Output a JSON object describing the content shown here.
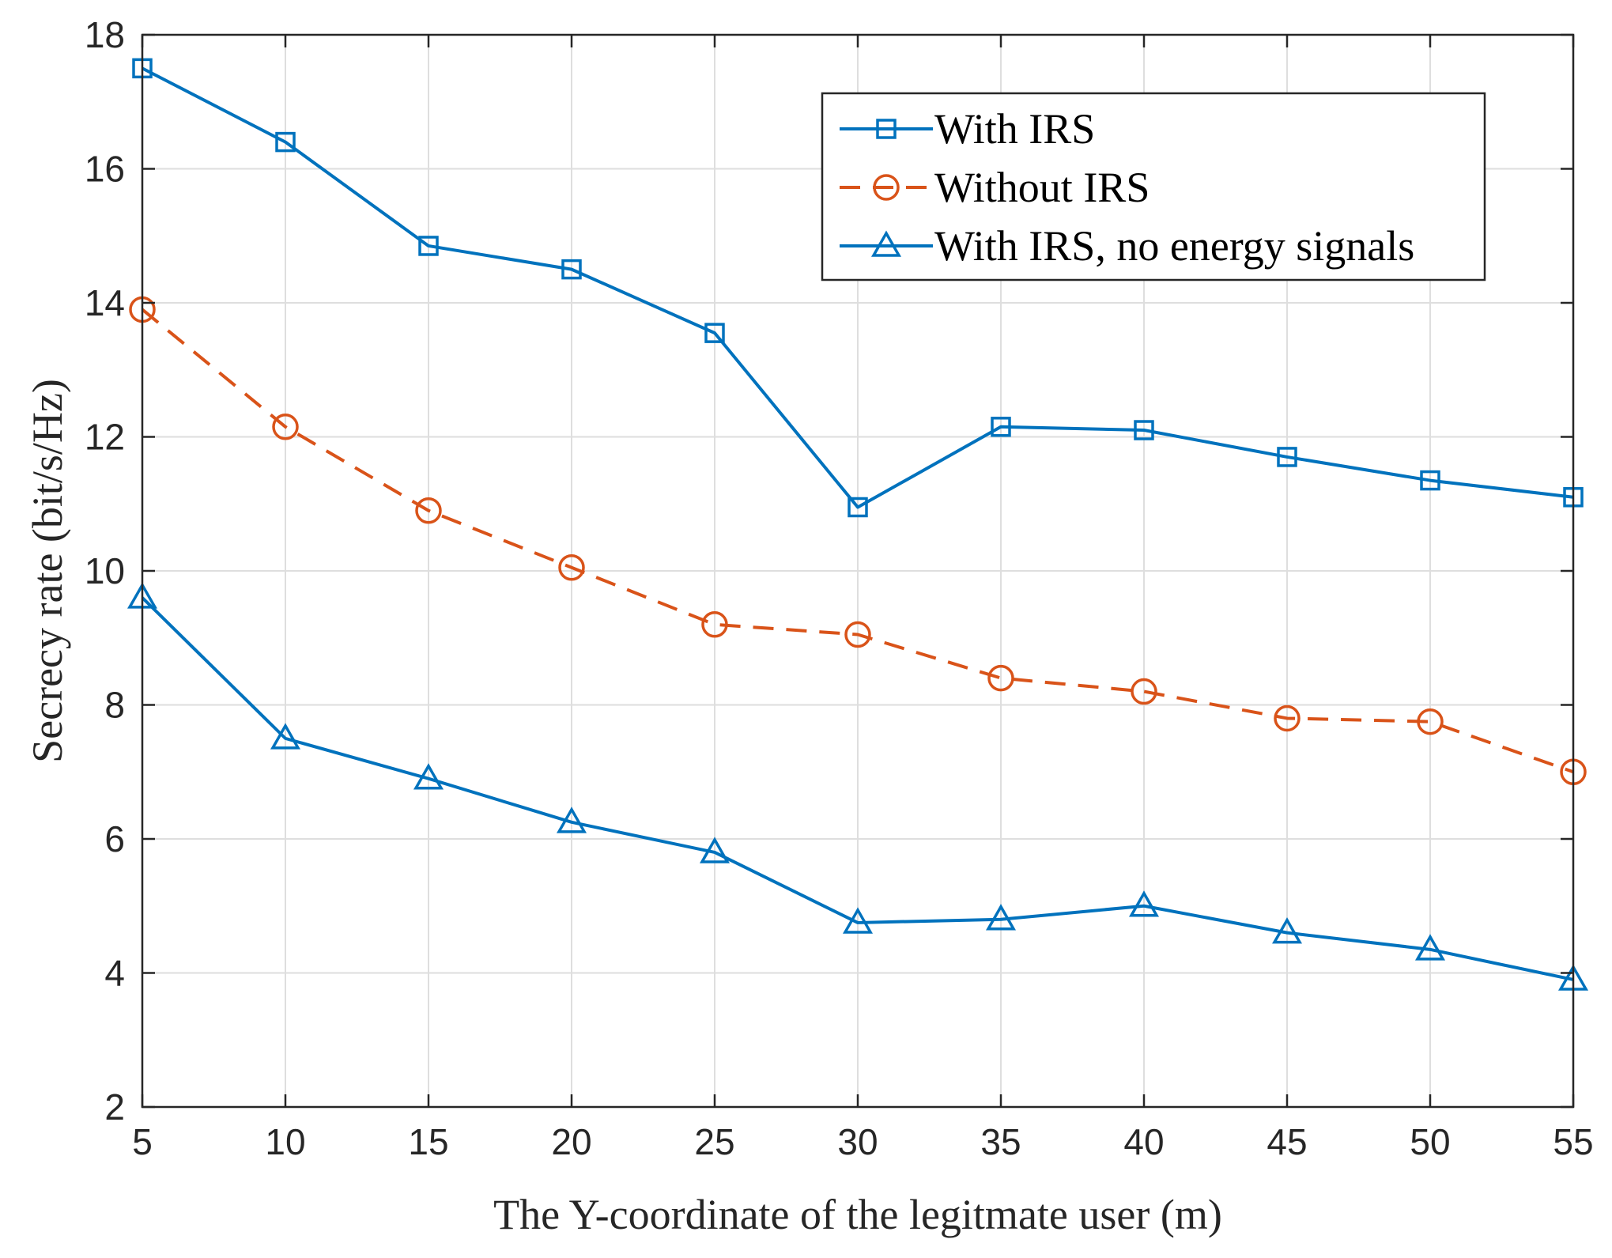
{
  "chart_data": {
    "type": "line",
    "title": "",
    "xlabel": "The Y-coordinate of the legitmate user (m)",
    "ylabel": "Secrecy rate (bit/s/Hz)",
    "x": [
      5,
      10,
      15,
      20,
      25,
      30,
      35,
      40,
      45,
      50,
      55
    ],
    "xlim": [
      5,
      55
    ],
    "ylim": [
      2,
      18
    ],
    "xticks": [
      "5",
      "10",
      "15",
      "20",
      "25",
      "30",
      "35",
      "40",
      "45",
      "50",
      "55"
    ],
    "yticks": [
      "2",
      "4",
      "6",
      "8",
      "10",
      "12",
      "14",
      "16",
      "18"
    ],
    "grid": true,
    "legend_position": "top-right",
    "series": [
      {
        "name": "With IRS",
        "color": "#0072BD",
        "line_style": "solid",
        "marker": "square",
        "values": [
          17.5,
          16.4,
          14.85,
          14.5,
          13.55,
          10.95,
          12.15,
          12.1,
          11.7,
          11.35,
          11.1
        ]
      },
      {
        "name": "Without IRS",
        "color": "#D95319",
        "line_style": "dashed",
        "marker": "circle",
        "values": [
          13.9,
          12.15,
          10.9,
          10.05,
          9.2,
          9.05,
          8.4,
          8.2,
          7.8,
          7.75,
          7.0
        ]
      },
      {
        "name": "With IRS, no energy signals",
        "color": "#0072BD",
        "line_style": "solid",
        "marker": "triangle",
        "values": [
          9.6,
          7.5,
          6.9,
          6.25,
          5.8,
          4.75,
          4.8,
          5.0,
          4.6,
          4.35,
          3.9
        ]
      }
    ]
  }
}
